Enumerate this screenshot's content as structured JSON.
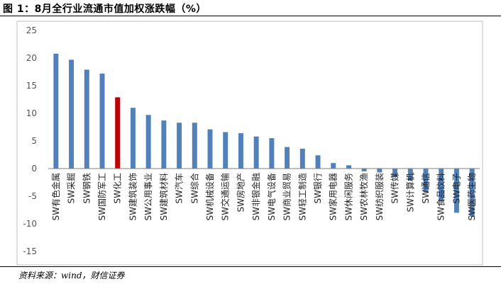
{
  "title": "图 1：8月全行业流通市值加权涨跌幅（%）",
  "source": "资料来源：wind，财信证券",
  "chart_data": {
    "type": "bar",
    "title": "图 1：8月全行业流通市值加权涨跌幅（%）",
    "xlabel": "",
    "ylabel": "",
    "ylim": [
      -15,
      25
    ],
    "yticks": [
      25,
      20,
      15,
      10,
      5,
      0,
      -5,
      -10,
      -15
    ],
    "grid": false,
    "legend": "none",
    "categories": [
      "SW有色金属",
      "SW采掘",
      "SW钢铁",
      "SW国防军工",
      "SW化工",
      "SW建筑装饰",
      "SW公用事业",
      "SW建筑材料",
      "SW汽车",
      "SW综合",
      "SW机械设备",
      "SW交通运输",
      "SW房地产",
      "SW非银金融",
      "SW电气设备",
      "SW商业贸易",
      "SW轻工制造",
      "SW银行",
      "SW家用电器",
      "SW休闲服务",
      "SW农林牧渔",
      "SW纺织服装",
      "SW传媒",
      "SW计算机",
      "SW通信",
      "SW食品饮料",
      "SW电子",
      "SW医药生物"
    ],
    "values": [
      20.8,
      19.7,
      17.9,
      17.2,
      12.9,
      11.0,
      9.7,
      8.7,
      8.3,
      8.3,
      7.1,
      6.6,
      6.4,
      5.8,
      5.5,
      3.9,
      3.6,
      2.4,
      1.0,
      0.6,
      -0.5,
      -0.7,
      -1.5,
      -2.2,
      -4.3,
      -5.9,
      -8.0,
      -8.7
    ],
    "colors": {
      "default": "#4F81BD",
      "highlight": "#C00000",
      "highlight_category": "SW化工"
    }
  }
}
